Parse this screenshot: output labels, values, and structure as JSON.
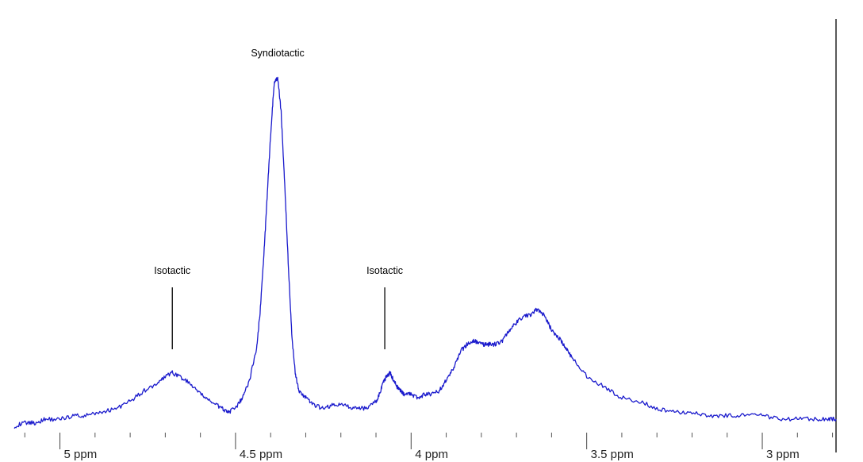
{
  "chart_data": {
    "type": "line",
    "title": "",
    "xlabel": "",
    "ylabel": "",
    "x_unit": "ppm",
    "x_reversed": true,
    "xlim": [
      5.13,
      2.79
    ],
    "ylim": [
      0,
      1
    ],
    "grid": false,
    "line_color": "#1a1acc",
    "major_ticks": [
      {
        "value": 5.0,
        "label": "5 ppm"
      },
      {
        "value": 4.5,
        "label": "4.5 ppm"
      },
      {
        "value": 4.0,
        "label": "4 ppm"
      },
      {
        "value": 3.5,
        "label": "3.5 ppm"
      },
      {
        "value": 3.0,
        "label": "3 ppm"
      }
    ],
    "minor_tick_step": 0.1,
    "annotations": [
      {
        "text": "Isotactic",
        "x": 4.68
      },
      {
        "text": "Syndiotactic",
        "x": 4.38
      },
      {
        "text": "Isotactic",
        "x": 4.075
      }
    ],
    "series": [
      {
        "x": [
          5.13,
          5.1,
          5.07,
          5.04,
          5.0,
          4.96,
          4.92,
          4.88,
          4.84,
          4.8,
          4.76,
          4.72,
          4.7,
          4.68,
          4.66,
          4.63,
          4.6,
          4.57,
          4.54,
          4.52,
          4.5,
          4.48,
          4.46,
          4.44,
          4.43,
          4.42,
          4.41,
          4.4,
          4.39,
          4.38,
          4.37,
          4.36,
          4.35,
          4.34,
          4.33,
          4.32,
          4.3,
          4.28,
          4.25,
          4.22,
          4.19,
          4.16,
          4.13,
          4.1,
          4.09,
          4.08,
          4.07,
          4.06,
          4.05,
          4.04,
          4.03,
          4.02,
          4.0,
          3.98,
          3.96,
          3.94,
          3.92,
          3.9,
          3.88,
          3.86,
          3.84,
          3.82,
          3.8,
          3.78,
          3.76,
          3.74,
          3.72,
          3.7,
          3.68,
          3.66,
          3.64,
          3.62,
          3.6,
          3.58,
          3.56,
          3.54,
          3.5,
          3.45,
          3.4,
          3.35,
          3.3,
          3.25,
          3.2,
          3.15,
          3.1,
          3.05,
          3.0,
          2.95,
          2.9,
          2.85,
          2.81,
          2.79
        ],
        "values": [
          0.0,
          0.01,
          0.01,
          0.02,
          0.02,
          0.03,
          0.03,
          0.04,
          0.05,
          0.07,
          0.1,
          0.12,
          0.14,
          0.15,
          0.14,
          0.12,
          0.09,
          0.07,
          0.05,
          0.04,
          0.05,
          0.08,
          0.13,
          0.22,
          0.32,
          0.47,
          0.64,
          0.82,
          0.96,
          0.98,
          0.88,
          0.68,
          0.46,
          0.26,
          0.15,
          0.1,
          0.08,
          0.06,
          0.05,
          0.06,
          0.06,
          0.05,
          0.05,
          0.07,
          0.09,
          0.12,
          0.14,
          0.15,
          0.13,
          0.11,
          0.1,
          0.09,
          0.09,
          0.08,
          0.09,
          0.09,
          0.1,
          0.13,
          0.16,
          0.21,
          0.23,
          0.24,
          0.23,
          0.23,
          0.23,
          0.24,
          0.27,
          0.29,
          0.31,
          0.31,
          0.33,
          0.31,
          0.27,
          0.25,
          0.22,
          0.19,
          0.14,
          0.11,
          0.08,
          0.07,
          0.05,
          0.04,
          0.04,
          0.03,
          0.03,
          0.03,
          0.03,
          0.02,
          0.02,
          0.02,
          0.02,
          0.02
        ]
      }
    ]
  }
}
